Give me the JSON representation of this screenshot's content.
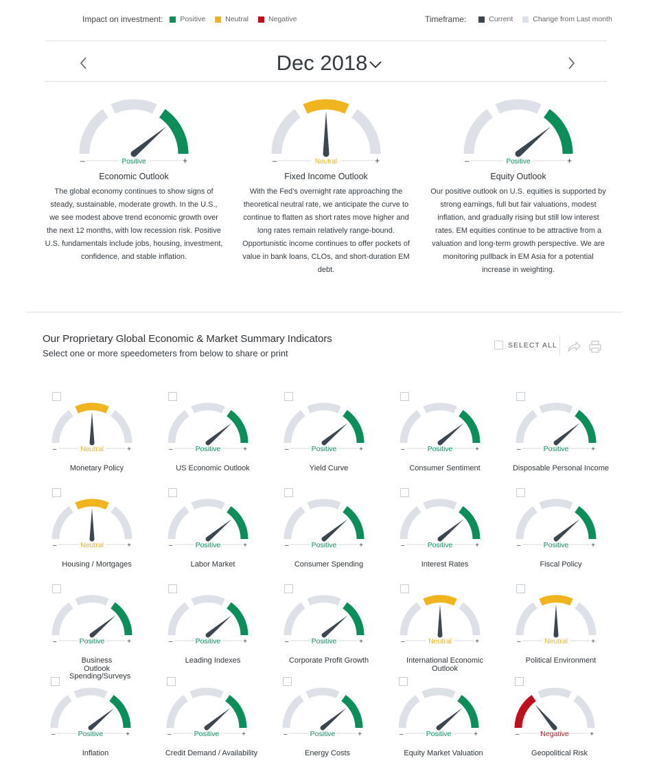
{
  "legend": {
    "impact_label": "Impact on investment:",
    "impact_items": [
      {
        "label": "Positive",
        "color": "#0a8f5b"
      },
      {
        "label": "Neutral",
        "color": "#f0b41e"
      },
      {
        "label": "Negative",
        "color": "#c20e1a"
      }
    ],
    "timeframe_label": "Timeframe:",
    "timeframe_items": [
      {
        "label": "Current",
        "color": "#3b4650"
      },
      {
        "label": "Change from Last month",
        "color": "#dde1e7"
      }
    ]
  },
  "colors": {
    "positive": "#0a8f5b",
    "neutral": "#f0b41e",
    "negative": "#c20e1a",
    "track": "#dde1e7",
    "needle": "#3b4650"
  },
  "nav": {
    "month": "Dec 2018",
    "prev_icon": "chevron-left-icon",
    "next_icon": "chevron-right-icon",
    "dropdown_icon": "chevron-down-icon"
  },
  "outlooks": [
    {
      "title": "Economic Outlook",
      "status": "Positive",
      "text": "The global economy continues to show signs of steady, sustainable, moderate growth. In the U.S., we see modest above trend economic growth over the next 12 months, with low recession risk. Positive U.S. fundamentals include jobs, housing, investment, confidence, and stable inflation."
    },
    {
      "title": "Fixed Income Outlook",
      "status": "Neutral",
      "text": "With the Fed’s overnight rate approaching the theoretical neutral rate, we anticipate the curve to continue to flatten as short rates move higher and long rates remain relatively range-bound. Opportunistic income continues to offer pockets of value in bank loans, CLOs, and short-duration EM debt."
    },
    {
      "title": "Equity Outlook",
      "status": "Positive",
      "text": "Our positive outlook on U.S. equities is supported by strong earnings, full but fair valuations, modest inflation, and gradually rising but still low interest rates. EM equities continue to be attractive from a valuation and long-term growth perspective. We are monitoring pullback in EM Asia for a potential increase in weighting."
    }
  ],
  "gauge_minus": "–",
  "gauge_plus": "+",
  "summary": {
    "title": "Our Proprietary Global Economic & Market Summary Indicators",
    "subtitle": "Select one or more speedometers from below to share or print",
    "select_all": "SELECT ALL",
    "share_icon": "share-icon",
    "print_icon": "print-icon"
  },
  "indicators": [
    {
      "name": "Monetary Policy",
      "status": "Neutral"
    },
    {
      "name": "US Economic Outlook",
      "status": "Positive"
    },
    {
      "name": "Yield Curve",
      "status": "Positive"
    },
    {
      "name": "Consumer Sentiment",
      "status": "Positive"
    },
    {
      "name": "Disposable Personal Income",
      "status": "Positive"
    },
    {
      "name": "Housing / Mortgages",
      "status": "Neutral"
    },
    {
      "name": "Labor Market",
      "status": "Positive"
    },
    {
      "name": "Consumer Spending",
      "status": "Positive"
    },
    {
      "name": "Interest Rates",
      "status": "Positive"
    },
    {
      "name": "Fiscal Policy",
      "status": "Positive"
    },
    {
      "name": "Business Outlook Spending/Surveys",
      "status": "Positive"
    },
    {
      "name": "Leading Indexes",
      "status": "Positive"
    },
    {
      "name": "Corporate Profit Growth",
      "status": "Positive"
    },
    {
      "name": "International Economic Outlook",
      "status": "Neutral"
    },
    {
      "name": "Political Environment",
      "status": "Neutral"
    },
    {
      "name": "Inflation",
      "status": "Positive"
    },
    {
      "name": "Credit Demand / Availability",
      "status": "Positive"
    },
    {
      "name": "Energy Costs",
      "status": "Positive"
    },
    {
      "name": "Equity Market Valuation",
      "status": "Positive"
    },
    {
      "name": "Geopolitical Risk",
      "status": "Negative"
    }
  ]
}
